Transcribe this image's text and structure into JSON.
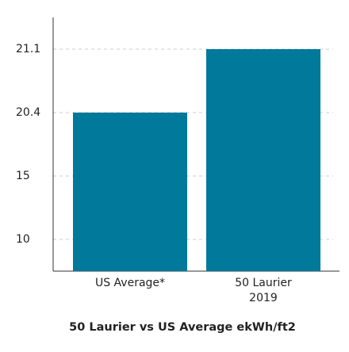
{
  "chart_data": {
    "type": "bar",
    "title": "50 Laurier vs US Average ekWh/ft2",
    "categories": [
      "US Average*",
      "50 Laurier\n2019"
    ],
    "values": [
      20.4,
      21.1
    ],
    "color": "#00799b",
    "ylim": [
      7.5,
      21.45
    ],
    "yticks": [
      10,
      15,
      20.4,
      21.1
    ],
    "y_scale": "evenly spaced ticks",
    "grid": true
  }
}
